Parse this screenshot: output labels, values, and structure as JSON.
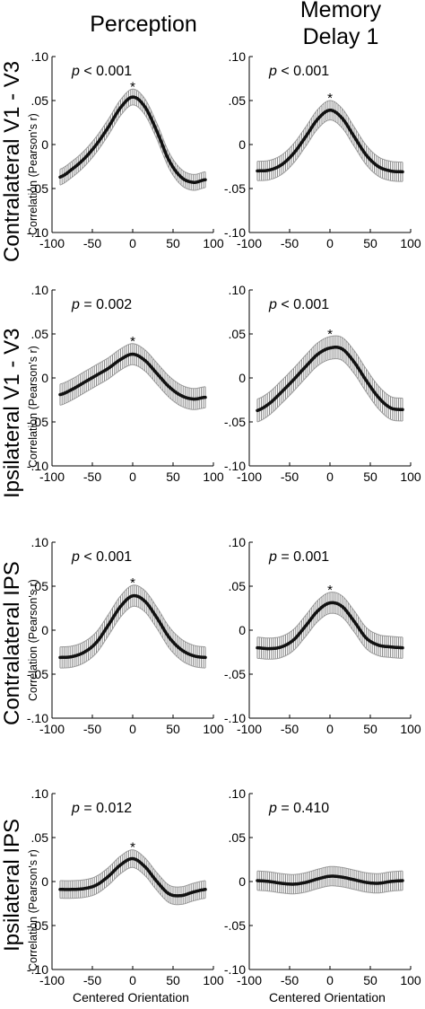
{
  "column_titles": {
    "perception": "Perception",
    "memory_line1": "Memory",
    "memory_line2": "Delay 1"
  },
  "row_labels": [
    "Contralateral V1 - V3",
    "Ipsilateral V1 - V3",
    "Contralateral IPS",
    "Ipsilateral IPS"
  ],
  "y_axis_label": "Correlation (Pearson's r)",
  "x_axis_label": "Centered Orientation",
  "chart_data": [
    {
      "type": "line",
      "row": "Contralateral V1 - V3",
      "column": "Perception",
      "p_label": "p",
      "p_text": " < 0.001",
      "significance_marker": "*",
      "x": [
        -90,
        -75,
        -60,
        -45,
        -30,
        -15,
        0,
        15,
        30,
        45,
        60,
        75,
        90
      ],
      "y": [
        -0.037,
        -0.028,
        -0.016,
        0.0,
        0.02,
        0.042,
        0.054,
        0.043,
        0.015,
        -0.018,
        -0.037,
        -0.043,
        -0.04
      ],
      "error_band": [
        0.009,
        0.009,
        0.009,
        0.009,
        0.009,
        0.009,
        0.009,
        0.009,
        0.009,
        0.009,
        0.009,
        0.009,
        0.009
      ],
      "xlim": [
        -100,
        100
      ],
      "ylim": [
        -0.1,
        0.1
      ],
      "xticks": [
        "-100",
        "-50",
        "0",
        "50",
        "100"
      ],
      "yticks": [
        ".10",
        ".05",
        "0",
        "-.05",
        "-.10"
      ]
    },
    {
      "type": "line",
      "row": "Contralateral V1 - V3",
      "column": "Memory Delay 1",
      "p_label": "p",
      "p_text": " < 0.001",
      "significance_marker": "*",
      "x": [
        -90,
        -75,
        -60,
        -45,
        -30,
        -15,
        0,
        15,
        30,
        45,
        60,
        75,
        90
      ],
      "y": [
        -0.03,
        -0.029,
        -0.023,
        -0.01,
        0.009,
        0.029,
        0.039,
        0.03,
        0.009,
        -0.012,
        -0.025,
        -0.03,
        -0.031
      ],
      "error_band": [
        0.011,
        0.011,
        0.011,
        0.011,
        0.011,
        0.011,
        0.011,
        0.011,
        0.011,
        0.011,
        0.011,
        0.011,
        0.011
      ],
      "xlim": [
        -100,
        100
      ],
      "ylim": [
        -0.1,
        0.1
      ],
      "xticks": [
        "-100",
        "-50",
        "0",
        "50",
        "100"
      ],
      "yticks": [
        ".10",
        ".05",
        "0",
        "-.05",
        "-.10"
      ]
    },
    {
      "type": "line",
      "row": "Ipsilateral V1 - V3",
      "column": "Perception",
      "p_label": "p",
      "p_text": " = 0.002",
      "significance_marker": "*",
      "x": [
        -90,
        -75,
        -60,
        -45,
        -30,
        -15,
        0,
        15,
        30,
        45,
        60,
        75,
        90
      ],
      "y": [
        -0.019,
        -0.013,
        -0.005,
        0.003,
        0.011,
        0.021,
        0.027,
        0.02,
        0.005,
        -0.01,
        -0.02,
        -0.024,
        -0.022
      ],
      "error_band": [
        0.012,
        0.012,
        0.012,
        0.012,
        0.012,
        0.012,
        0.012,
        0.012,
        0.012,
        0.012,
        0.012,
        0.012,
        0.012
      ],
      "xlim": [
        -100,
        100
      ],
      "ylim": [
        -0.1,
        0.1
      ],
      "xticks": [
        "-100",
        "-50",
        "0",
        "50",
        "100"
      ],
      "yticks": [
        ".10",
        ".05",
        "0",
        "-.05",
        "-.10"
      ]
    },
    {
      "type": "line",
      "row": "Ipsilateral V1 - V3",
      "column": "Memory Delay 1",
      "p_label": "p",
      "p_text": " < 0.001",
      "significance_marker": "*",
      "x": [
        -90,
        -75,
        -60,
        -45,
        -30,
        -15,
        0,
        15,
        30,
        45,
        60,
        75,
        90
      ],
      "y": [
        -0.037,
        -0.029,
        -0.016,
        -0.002,
        0.013,
        0.027,
        0.034,
        0.033,
        0.018,
        -0.003,
        -0.022,
        -0.034,
        -0.036
      ],
      "error_band": [
        0.013,
        0.013,
        0.013,
        0.013,
        0.013,
        0.013,
        0.013,
        0.013,
        0.013,
        0.013,
        0.013,
        0.013,
        0.013
      ],
      "xlim": [
        -100,
        100
      ],
      "ylim": [
        -0.1,
        0.1
      ],
      "xticks": [
        "-100",
        "-50",
        "0",
        "50",
        "100"
      ],
      "yticks": [
        ".10",
        ".05",
        "0",
        "-.05",
        "-.10"
      ]
    },
    {
      "type": "line",
      "row": "Contralateral IPS",
      "column": "Perception",
      "p_label": "p",
      "p_text": " < 0.001",
      "significance_marker": "*",
      "x": [
        -90,
        -75,
        -60,
        -45,
        -30,
        -15,
        0,
        15,
        30,
        45,
        60,
        75,
        90
      ],
      "y": [
        -0.031,
        -0.03,
        -0.025,
        -0.014,
        0.006,
        0.027,
        0.039,
        0.033,
        0.014,
        -0.008,
        -0.022,
        -0.029,
        -0.031
      ],
      "error_band": [
        0.012,
        0.012,
        0.012,
        0.012,
        0.012,
        0.012,
        0.012,
        0.012,
        0.012,
        0.012,
        0.012,
        0.012,
        0.012
      ],
      "xlim": [
        -100,
        100
      ],
      "ylim": [
        -0.1,
        0.1
      ],
      "xticks": [
        "-100",
        "-50",
        "0",
        "50",
        "100"
      ],
      "yticks": [
        ".10",
        ".05",
        "0",
        "-.05",
        "-.10"
      ]
    },
    {
      "type": "line",
      "row": "Contralateral IPS",
      "column": "Memory Delay 1",
      "p_label": "p",
      "p_text": " = 0.001",
      "significance_marker": "*",
      "x": [
        -90,
        -75,
        -60,
        -45,
        -30,
        -15,
        0,
        15,
        30,
        45,
        60,
        75,
        90
      ],
      "y": [
        -0.02,
        -0.021,
        -0.019,
        -0.011,
        0.005,
        0.022,
        0.031,
        0.027,
        0.01,
        -0.009,
        -0.017,
        -0.019,
        -0.02
      ],
      "error_band": [
        0.012,
        0.012,
        0.012,
        0.012,
        0.012,
        0.012,
        0.012,
        0.012,
        0.012,
        0.012,
        0.012,
        0.012,
        0.012
      ],
      "xlim": [
        -100,
        100
      ],
      "ylim": [
        -0.1,
        0.1
      ],
      "xticks": [
        "-100",
        "-50",
        "0",
        "50",
        "100"
      ],
      "yticks": [
        ".10",
        ".05",
        "0",
        "-.05",
        "-.10"
      ]
    },
    {
      "type": "line",
      "row": "Ipsilateral IPS",
      "column": "Perception",
      "p_label": "p",
      "p_text": " = 0.012",
      "significance_marker": "*",
      "x": [
        -90,
        -75,
        -60,
        -45,
        -30,
        -15,
        0,
        15,
        30,
        45,
        60,
        75,
        90
      ],
      "y": [
        -0.009,
        -0.009,
        -0.008,
        -0.004,
        0.006,
        0.019,
        0.026,
        0.017,
        0.0,
        -0.014,
        -0.016,
        -0.012,
        -0.009
      ],
      "error_band": [
        0.01,
        0.01,
        0.01,
        0.01,
        0.01,
        0.01,
        0.01,
        0.01,
        0.01,
        0.01,
        0.01,
        0.01,
        0.01
      ],
      "xlim": [
        -100,
        100
      ],
      "ylim": [
        -0.1,
        0.1
      ],
      "xticks": [
        "-100",
        "-50",
        "0",
        "50",
        "100"
      ],
      "yticks": [
        ".10",
        ".05",
        "0",
        "-.05",
        "-.10"
      ]
    },
    {
      "type": "line",
      "row": "Ipsilateral IPS",
      "column": "Memory Delay 1",
      "p_label": "p",
      "p_text": " = 0.410",
      "significance_marker": "",
      "x": [
        -90,
        -75,
        -60,
        -45,
        -30,
        -15,
        0,
        15,
        30,
        45,
        60,
        75,
        90
      ],
      "y": [
        0.001,
        0.0,
        -0.002,
        -0.003,
        -0.001,
        0.003,
        0.006,
        0.005,
        0.002,
        -0.001,
        -0.002,
        0.0,
        0.001
      ],
      "error_band": [
        0.011,
        0.011,
        0.011,
        0.011,
        0.011,
        0.011,
        0.011,
        0.011,
        0.011,
        0.011,
        0.011,
        0.011,
        0.011
      ],
      "xlim": [
        -100,
        100
      ],
      "ylim": [
        -0.1,
        0.1
      ],
      "xticks": [
        "-100",
        "-50",
        "0",
        "50",
        "100"
      ],
      "yticks": [
        ".10",
        ".05",
        "0",
        "-.05",
        "-.10"
      ]
    }
  ]
}
